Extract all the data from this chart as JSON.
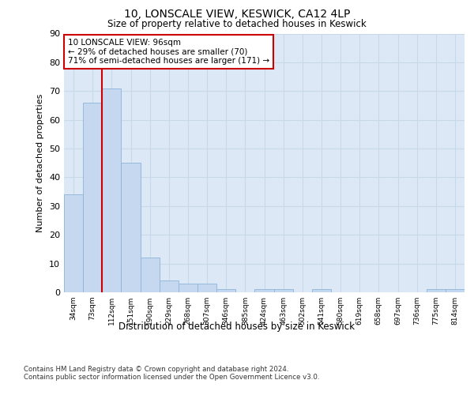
{
  "title1": "10, LONSCALE VIEW, KESWICK, CA12 4LP",
  "title2": "Size of property relative to detached houses in Keswick",
  "xlabel": "Distribution of detached houses by size in Keswick",
  "ylabel": "Number of detached properties",
  "categories": [
    "34sqm",
    "73sqm",
    "112sqm",
    "151sqm",
    "190sqm",
    "229sqm",
    "268sqm",
    "307sqm",
    "346sqm",
    "385sqm",
    "424sqm",
    "463sqm",
    "502sqm",
    "541sqm",
    "580sqm",
    "619sqm",
    "658sqm",
    "697sqm",
    "736sqm",
    "775sqm",
    "814sqm"
  ],
  "values": [
    34,
    66,
    71,
    45,
    12,
    4,
    3,
    3,
    1,
    0,
    1,
    1,
    0,
    1,
    0,
    0,
    0,
    0,
    0,
    1,
    1
  ],
  "bar_color": "#c5d8f0",
  "bar_edge_color": "#8cb4d8",
  "vline_color": "#cc0000",
  "annotation_text": "10 LONSCALE VIEW: 96sqm\n← 29% of detached houses are smaller (70)\n71% of semi-detached houses are larger (171) →",
  "annotation_box_color": "#ffffff",
  "annotation_box_edge_color": "#cc0000",
  "ylim": [
    0,
    90
  ],
  "yticks": [
    0,
    10,
    20,
    30,
    40,
    50,
    60,
    70,
    80,
    90
  ],
  "grid_color": "#c8d8e8",
  "bg_color": "#dce8f5",
  "footer1": "Contains HM Land Registry data © Crown copyright and database right 2024.",
  "footer2": "Contains public sector information licensed under the Open Government Licence v3.0."
}
